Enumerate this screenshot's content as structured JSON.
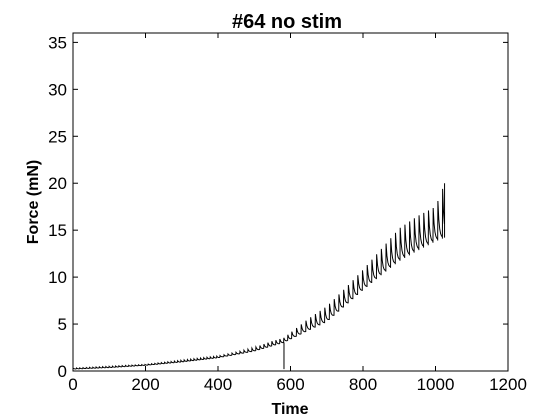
{
  "chart_data": {
    "type": "line",
    "title": "#64 no stim",
    "xlabel": "Time",
    "ylabel": "Force (mN)",
    "xlim": [
      0,
      1200
    ],
    "ylim": [
      0,
      36
    ],
    "xticks": [
      0,
      200,
      400,
      600,
      800,
      1000,
      1200
    ],
    "yticks": [
      0,
      5,
      10,
      15,
      20,
      25,
      30,
      35
    ],
    "grid": false,
    "line_color": "#000000",
    "series": [
      {
        "baseline": [
          [
            0,
            0.2
          ],
          [
            100,
            0.35
          ],
          [
            200,
            0.6
          ],
          [
            300,
            0.95
          ],
          [
            400,
            1.4
          ],
          [
            500,
            2.1
          ],
          [
            580,
            3.0
          ],
          [
            650,
            4.3
          ],
          [
            700,
            5.2
          ],
          [
            750,
            6.9
          ],
          [
            800,
            8.6
          ],
          [
            850,
            10.2
          ],
          [
            900,
            11.7
          ],
          [
            950,
            12.8
          ],
          [
            1000,
            13.8
          ],
          [
            1025,
            14.2
          ]
        ],
        "peaks": [
          [
            0,
            0.3
          ],
          [
            200,
            0.7
          ],
          [
            400,
            1.6
          ],
          [
            450,
            2.0
          ],
          [
            500,
            2.5
          ],
          [
            550,
            3.2
          ],
          [
            580,
            3.5
          ],
          [
            600,
            4.1
          ],
          [
            650,
            5.6
          ],
          [
            700,
            6.9
          ],
          [
            750,
            8.8
          ],
          [
            800,
            10.8
          ],
          [
            850,
            13.0
          ],
          [
            900,
            15.2
          ],
          [
            950,
            16.5
          ],
          [
            1000,
            17.5
          ],
          [
            1025,
            20.0
          ]
        ],
        "dip": {
          "x": 582,
          "y": 0.2
        }
      }
    ]
  }
}
